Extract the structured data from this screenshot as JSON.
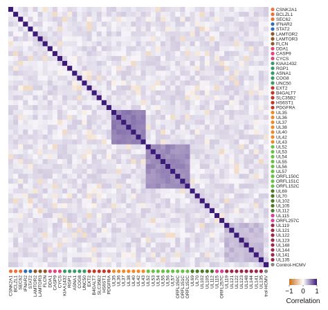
{
  "chart_data": {
    "type": "heatmap",
    "labels": [
      "CSNK2A1",
      "BCLZL1",
      "SEC62",
      "IFNAR2",
      "STAT2",
      "LAMTOR2",
      "LAMTOR3",
      "FLCN",
      "DDA1",
      "CASP9",
      "CYCS",
      "KIAA1432",
      "RGP1",
      "ASNA1",
      "COG8",
      "UNC50",
      "EXT2",
      "B4GALT7",
      "SLC35B2",
      "HS6ST1",
      "PDGFRA",
      "UL35",
      "UL36",
      "UL37",
      "UL38",
      "UL40",
      "UL42",
      "UL43",
      "UL52",
      "UL53",
      "UL54",
      "UL55",
      "UL56",
      "UL57",
      "ORFL150C",
      "ORFL151C",
      "ORFL152C",
      "UL69",
      "UL70",
      "UL102",
      "UL105",
      "UL112",
      "UL115",
      "ORFL257C",
      "UL119",
      "UL121",
      "UL122",
      "UL123",
      "UL148",
      "UL144",
      "UL141",
      "UL135",
      "Control-HCMV"
    ],
    "x_tick_labels": [
      "CSNK2A1",
      "BCLZL1",
      "SEC62",
      "IFNAR2",
      "STAT2",
      "LAMTOR2",
      "LAMTOR3",
      "FLCN",
      "DDA1",
      "CASP9",
      "CYCS",
      "KIAA1432",
      "RGP1",
      "ASNA1",
      "COG8",
      "UNC50",
      "EXT2",
      "B4GALT7",
      "SLC35B2",
      "HS6ST1",
      "PDGFRA",
      "UL35",
      "UL36",
      "UL37",
      "UL38",
      "UL40",
      "UL42",
      "UL43",
      "UL52",
      "UL53",
      "UL54",
      "UL55",
      "UL56",
      "UL57",
      "ORFL150C",
      "ORFL151C",
      "ORFL152C",
      "UL69",
      "UL70",
      "UL102",
      "UL105",
      "UL112",
      "UL115",
      "ORFL257C",
      "UL119",
      "UL121",
      "UL122",
      "UL123",
      "UL148",
      "UL144",
      "UL141",
      "UL135",
      "trol-HCMV"
    ],
    "group_colors": [
      "#e8743b",
      "#e8743b",
      "#e8743b",
      "#2f6db5",
      "#2f6db5",
      "#8c5a2b",
      "#8c5a2b",
      "#8c5a2b",
      "#e0457b",
      "#e0457b",
      "#e0457b",
      "#3a9a6a",
      "#3a9a6a",
      "#3a9a6a",
      "#3a9a6a",
      "#3a9a6a",
      "#c0392b",
      "#c0392b",
      "#c0392b",
      "#c0392b",
      "#c0392b",
      "#ef8a2a",
      "#ef8a2a",
      "#ef8a2a",
      "#ef8a2a",
      "#ef8a2a",
      "#ef8a2a",
      "#ef8a2a",
      "#6cbf4a",
      "#6cbf4a",
      "#6cbf4a",
      "#6cbf4a",
      "#6cbf4a",
      "#6cbf4a",
      "#6cbf4a",
      "#6cbf4a",
      "#6cbf4a",
      "#4a7a2a",
      "#4a7a2a",
      "#4a7a2a",
      "#4a7a2a",
      "#4a7a2a",
      "#d4429a",
      "#d4429a",
      "#9b2a4a",
      "#9b2a4a",
      "#9b2a4a",
      "#9b2a4a",
      "#9b2a4a",
      "#9b2a4a",
      "#9b2a4a",
      "#9b2a4a",
      "#888888"
    ],
    "blocks": [
      {
        "from": 21,
        "to": 27,
        "value": 0.55
      },
      {
        "from": 28,
        "to": 36,
        "value": 0.5
      },
      {
        "from": 37,
        "to": 41,
        "value": 0.15
      },
      {
        "from": 44,
        "to": 51,
        "value": 0.3
      }
    ],
    "diagonal_value": 1,
    "value_range": [
      -1,
      1
    ],
    "colormap": [
      "#c8711a",
      "#ffffff",
      "#3c1a78"
    ],
    "colorbar": {
      "ticks": [
        "−1",
        "0",
        "1"
      ],
      "label": "Correlation"
    }
  }
}
